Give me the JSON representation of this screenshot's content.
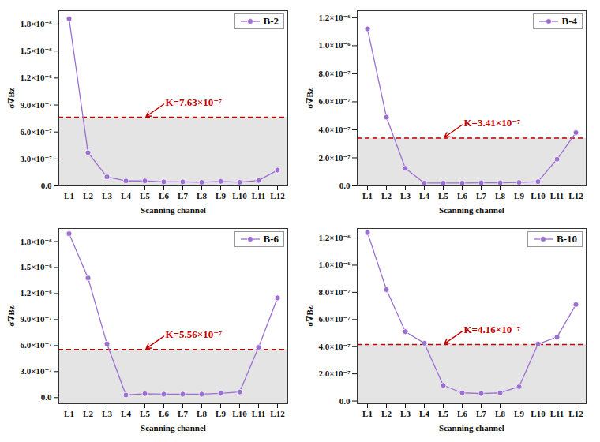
{
  "chart_data": [
    {
      "type": "line",
      "xlabel": "Scanning channel",
      "ylabel": "σ∇Bz",
      "categories": [
        "L1",
        "L2",
        "L3",
        "L4",
        "L5",
        "L6",
        "L7",
        "L8",
        "L9",
        "L10",
        "L11",
        "L12"
      ],
      "series": [
        {
          "name": "B-2",
          "color": "#9b6fd0",
          "marker": "circle",
          "values": [
            1.86e-06,
            3.7e-07,
            1e-07,
            5.5e-08,
            5.5e-08,
            4.5e-08,
            4.5e-08,
            4e-08,
            5e-08,
            4e-08,
            6e-08,
            1.75e-07
          ]
        }
      ],
      "annotations": [
        {
          "value": 7.63e-07,
          "label": "K=7.63×10⁻⁷",
          "color": "#c00000"
        }
      ],
      "ylim": [
        0,
        1.95e-06
      ],
      "yticks": [
        {
          "value": 0,
          "label": "0.0"
        },
        {
          "value": 3e-07,
          "label": "3.0×10⁻⁷"
        },
        {
          "value": 6e-07,
          "label": "6.0×10⁻⁷"
        },
        {
          "value": 9e-07,
          "label": "9.0×10⁻⁷"
        },
        {
          "value": 1.2e-06,
          "label": "1.2×10⁻⁶"
        },
        {
          "value": 1.5e-06,
          "label": "1.5×10⁻⁶"
        },
        {
          "value": 1.8e-06,
          "label": "1.8×10⁻⁶"
        }
      ],
      "legend": "top-right"
    },
    {
      "type": "line",
      "xlabel": "Scanning channel",
      "ylabel": "σ∇Bz",
      "categories": [
        "L1",
        "L2",
        "L3",
        "L4",
        "L5",
        "L6",
        "L7",
        "L8",
        "L9",
        "L10",
        "L11",
        "L12"
      ],
      "series": [
        {
          "name": "B-4",
          "color": "#9b6fd0",
          "marker": "circle",
          "values": [
            1.12e-06,
            4.9e-07,
            1.25e-07,
            2e-08,
            2e-08,
            2e-08,
            2.2e-08,
            2.2e-08,
            2.5e-08,
            3e-08,
            1.9e-07,
            3.8e-07
          ]
        }
      ],
      "annotations": [
        {
          "value": 3.41e-07,
          "label": "K=3.41×10⁻⁷",
          "color": "#c00000"
        }
      ],
      "ylim": [
        0,
        1.25e-06
      ],
      "yticks": [
        {
          "value": 0,
          "label": "0.0"
        },
        {
          "value": 2e-07,
          "label": "2.0×10⁻⁷"
        },
        {
          "value": 4e-07,
          "label": "4.0×10⁻⁷"
        },
        {
          "value": 6e-07,
          "label": "6.0×10⁻⁷"
        },
        {
          "value": 8e-07,
          "label": "8.0×10⁻⁷"
        },
        {
          "value": 1e-06,
          "label": "1.0×10⁻⁶"
        },
        {
          "value": 1.2e-06,
          "label": "1.2×10⁻⁶"
        }
      ],
      "legend": "top-right"
    },
    {
      "type": "line",
      "xlabel": "Scanning channel",
      "ylabel": "σ∇Bz",
      "categories": [
        "L1",
        "L2",
        "L3",
        "L4",
        "L5",
        "L6",
        "L7",
        "L8",
        "L9",
        "L10",
        "L11",
        "L12"
      ],
      "series": [
        {
          "name": "B-6",
          "color": "#9b6fd0",
          "marker": "circle",
          "values": [
            1.89e-06,
            1.38e-06,
            6.2e-07,
            3e-08,
            4.5e-08,
            4e-08,
            4e-08,
            4e-08,
            5e-08,
            6.5e-08,
            5.8e-07,
            1.15e-06
          ]
        }
      ],
      "annotations": [
        {
          "value": 5.56e-07,
          "label": "K=5.56×10⁻⁷",
          "color": "#c00000"
        }
      ],
      "ylim": [
        -7e-08,
        1.95e-06
      ],
      "yticks": [
        {
          "value": 0,
          "label": "0.0"
        },
        {
          "value": 3e-07,
          "label": "3.0×10⁻⁷"
        },
        {
          "value": 6e-07,
          "label": "6.0×10⁻⁷"
        },
        {
          "value": 9e-07,
          "label": "9.0×10⁻⁷"
        },
        {
          "value": 1.2e-06,
          "label": "1.2×10⁻⁶"
        },
        {
          "value": 1.5e-06,
          "label": "1.5×10⁻⁶"
        },
        {
          "value": 1.8e-06,
          "label": "1.8×10⁻⁶"
        }
      ],
      "legend": "top-right"
    },
    {
      "type": "line",
      "xlabel": "Scanning channel",
      "ylabel": "σ∇Bz",
      "categories": [
        "L1",
        "L2",
        "L3",
        "L4",
        "L5",
        "L6",
        "L7",
        "L8",
        "L9",
        "L10",
        "L11",
        "L12"
      ],
      "series": [
        {
          "name": "B-10",
          "color": "#9b6fd0",
          "marker": "circle",
          "values": [
            1.24e-06,
            8.2e-07,
            5.1e-07,
            4.25e-07,
            1.15e-07,
            6e-08,
            5.5e-08,
            6e-08,
            1.05e-07,
            4.2e-07,
            4.7e-07,
            7.1e-07
          ]
        }
      ],
      "annotations": [
        {
          "value": 4.16e-07,
          "label": "K=4.16×10⁻⁷",
          "color": "#c00000"
        }
      ],
      "ylim": [
        -2e-08,
        1.27e-06
      ],
      "yticks": [
        {
          "value": 0,
          "label": "0.0"
        },
        {
          "value": 2e-07,
          "label": "2.0×10⁻⁷"
        },
        {
          "value": 4e-07,
          "label": "4.0×10⁻⁷"
        },
        {
          "value": 6e-07,
          "label": "6.0×10⁻⁷"
        },
        {
          "value": 8e-07,
          "label": "8.0×10⁻⁷"
        },
        {
          "value": 1e-06,
          "label": "1.0×10⁻⁶"
        },
        {
          "value": 1.2e-06,
          "label": "1.2×10⁻⁶"
        }
      ],
      "legend": "top-right"
    }
  ]
}
